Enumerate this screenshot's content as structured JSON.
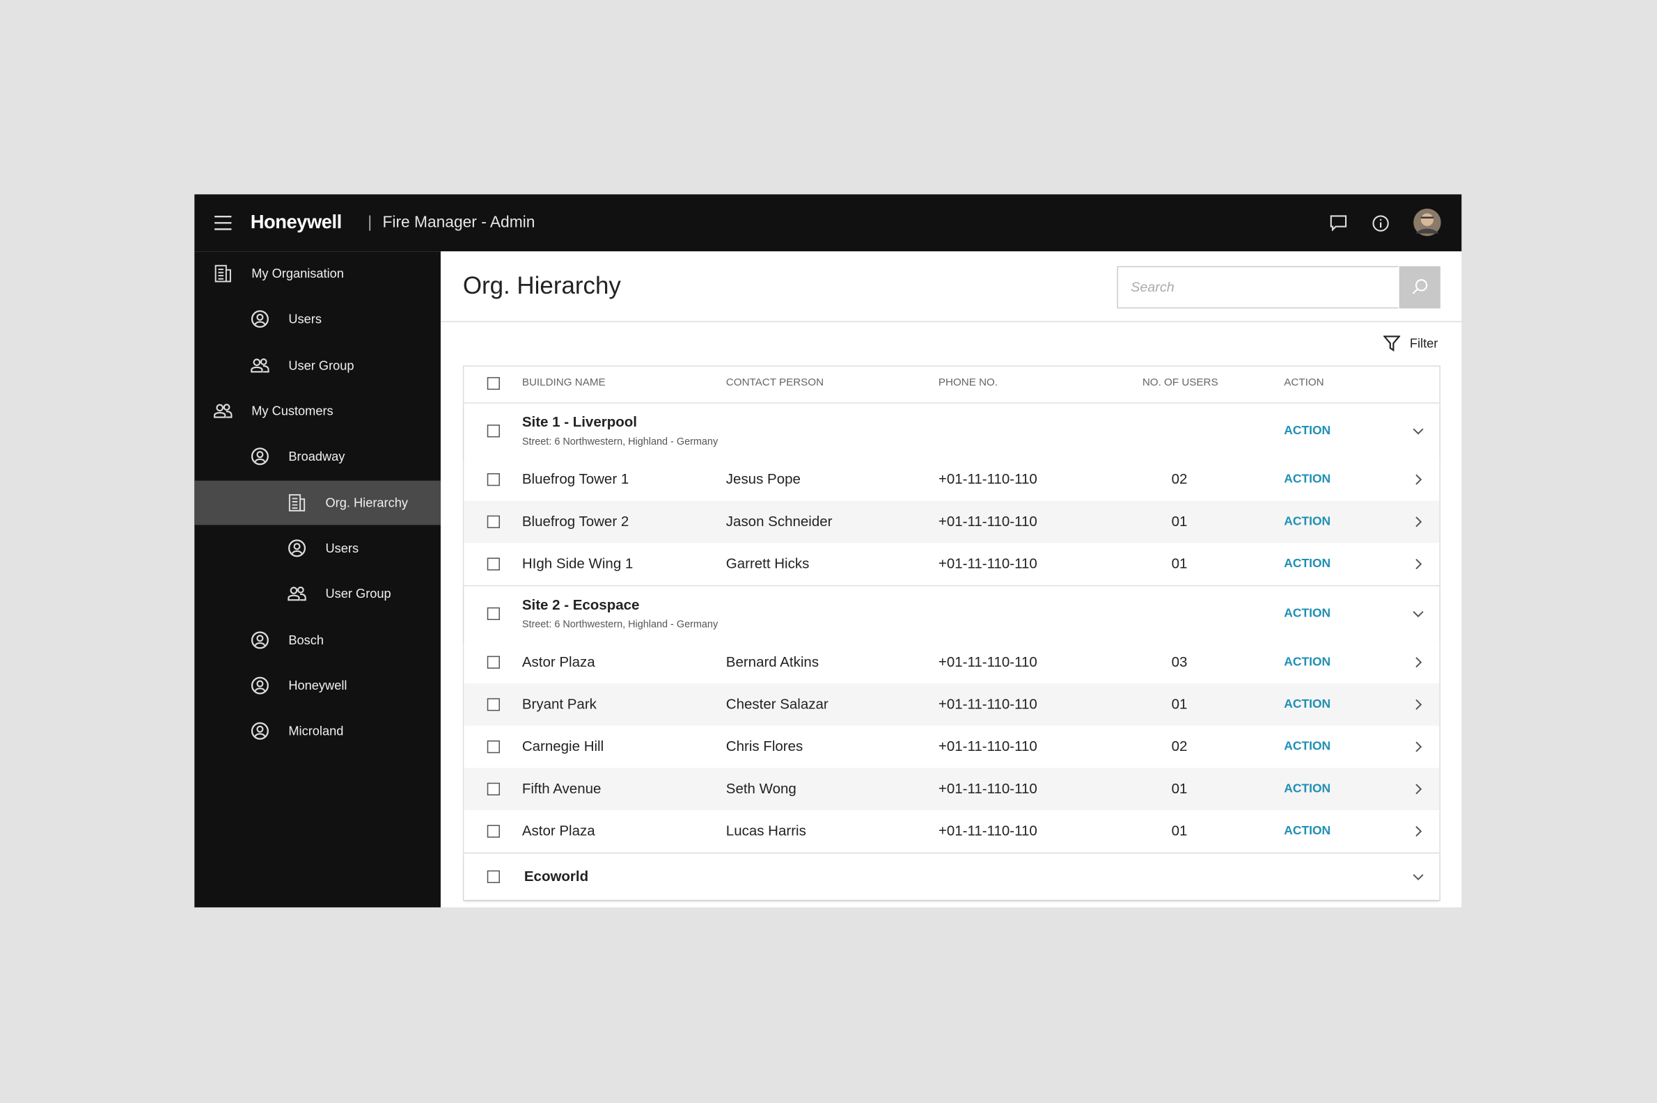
{
  "header": {
    "brand": "Honeywell",
    "app_name": "Fire Manager - Admin"
  },
  "sidebar": [
    {
      "label": "My Organisation",
      "level": 0,
      "icon": "doc"
    },
    {
      "label": "Users",
      "level": 1,
      "icon": "user"
    },
    {
      "label": "User Group",
      "level": 1,
      "icon": "group"
    },
    {
      "label": "My Customers",
      "level": 0,
      "icon": "group"
    },
    {
      "label": "Broadway",
      "level": 1,
      "icon": "user"
    },
    {
      "label": "Org. Hierarchy",
      "level": 2,
      "icon": "doc",
      "active": true
    },
    {
      "label": "Users",
      "level": 2,
      "icon": "user"
    },
    {
      "label": "User Group",
      "level": 2,
      "icon": "group"
    },
    {
      "label": "Bosch",
      "level": 1,
      "icon": "user"
    },
    {
      "label": "Honeywell",
      "level": 1,
      "icon": "user"
    },
    {
      "label": "Microland",
      "level": 1,
      "icon": "user"
    }
  ],
  "page": {
    "title": "Org. Hierarchy",
    "search_placeholder": "Search",
    "filter": "Filter"
  },
  "table": {
    "columns": [
      "BUILDING NAME",
      "CONTACT PERSON",
      "PHONE NO.",
      "NO. OF USERS",
      "ACTION"
    ],
    "groups": [
      {
        "name": "Site 1 - Liverpool",
        "address": "Street: 6 Northwestern, Highland - Germany",
        "action": "ACTION",
        "rows": [
          [
            "Bluefrog Tower 1",
            "Jesus Pope",
            "+01-11-110-110",
            "02",
            "ACTION"
          ],
          [
            "Bluefrog Tower 2",
            "Jason Schneider",
            "+01-11-110-110",
            "01",
            "ACTION"
          ],
          [
            "HIgh Side Wing 1",
            "Garrett Hicks",
            "+01-11-110-110",
            "01",
            "ACTION"
          ]
        ]
      },
      {
        "name": "Site 2 - Ecospace",
        "address": "Street: 6 Northwestern, Highland - Germany",
        "action": "ACTION",
        "rows": [
          [
            "Astor Plaza",
            "Bernard Atkins",
            "+01-11-110-110",
            "03",
            "ACTION"
          ],
          [
            "Bryant Park",
            "Chester Salazar",
            "+01-11-110-110",
            "01",
            "ACTION"
          ],
          [
            "Carnegie Hill",
            "Chris Flores",
            "+01-11-110-110",
            "02",
            "ACTION"
          ],
          [
            "Fifth Avenue",
            "Seth Wong",
            "+01-11-110-110",
            "01",
            "ACTION"
          ],
          [
            "Astor Plaza",
            "Lucas Harris",
            "+01-11-110-110",
            "01",
            "ACTION"
          ]
        ]
      },
      {
        "name": "Ecoworld",
        "rows": []
      }
    ]
  }
}
